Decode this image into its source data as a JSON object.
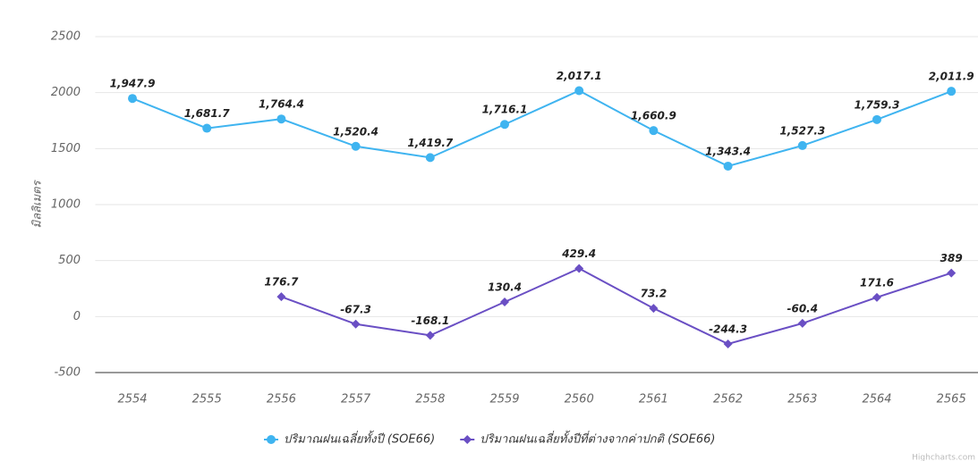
{
  "chart_data": {
    "type": "line",
    "y_axis_label": "มิลลิเมตร",
    "categories": [
      "2554",
      "2555",
      "2556",
      "2557",
      "2558",
      "2559",
      "2560",
      "2561",
      "2562",
      "2563",
      "2564",
      "2565"
    ],
    "series": [
      {
        "name": "ปริมาณฝนเฉลี่ยทั้งปี (SOE66)",
        "color": "#3fb4f0",
        "marker": "circle",
        "values": [
          1947.9,
          1681.7,
          1764.4,
          1520.4,
          1419.7,
          1716.1,
          2017.1,
          1660.9,
          1343.4,
          1527.3,
          1759.3,
          2011.9
        ],
        "value_labels": [
          "1,947.9",
          "1,681.7",
          "1,764.4",
          "1,520.4",
          "1,419.7",
          "1,716.1",
          "2,017.1",
          "1,660.9",
          "1,343.4",
          "1,527.3",
          "1,759.3",
          "2,011.9"
        ]
      },
      {
        "name": "ปริมาณฝนเฉลี่ยทั้งปีที่ต่างจากค่าปกติ (SOE66)",
        "color": "#6a4fc4",
        "marker": "diamond",
        "values": [
          null,
          null,
          176.7,
          -67.3,
          -168.1,
          130.4,
          429.4,
          73.2,
          -244.3,
          -60.4,
          171.6,
          389
        ]
      }
    ],
    "ylim": [
      -500,
      2500
    ],
    "yticks": [
      -500,
      0,
      500,
      1000,
      1500,
      2000,
      2500
    ],
    "grid": true,
    "credit": "Highcharts.com"
  }
}
